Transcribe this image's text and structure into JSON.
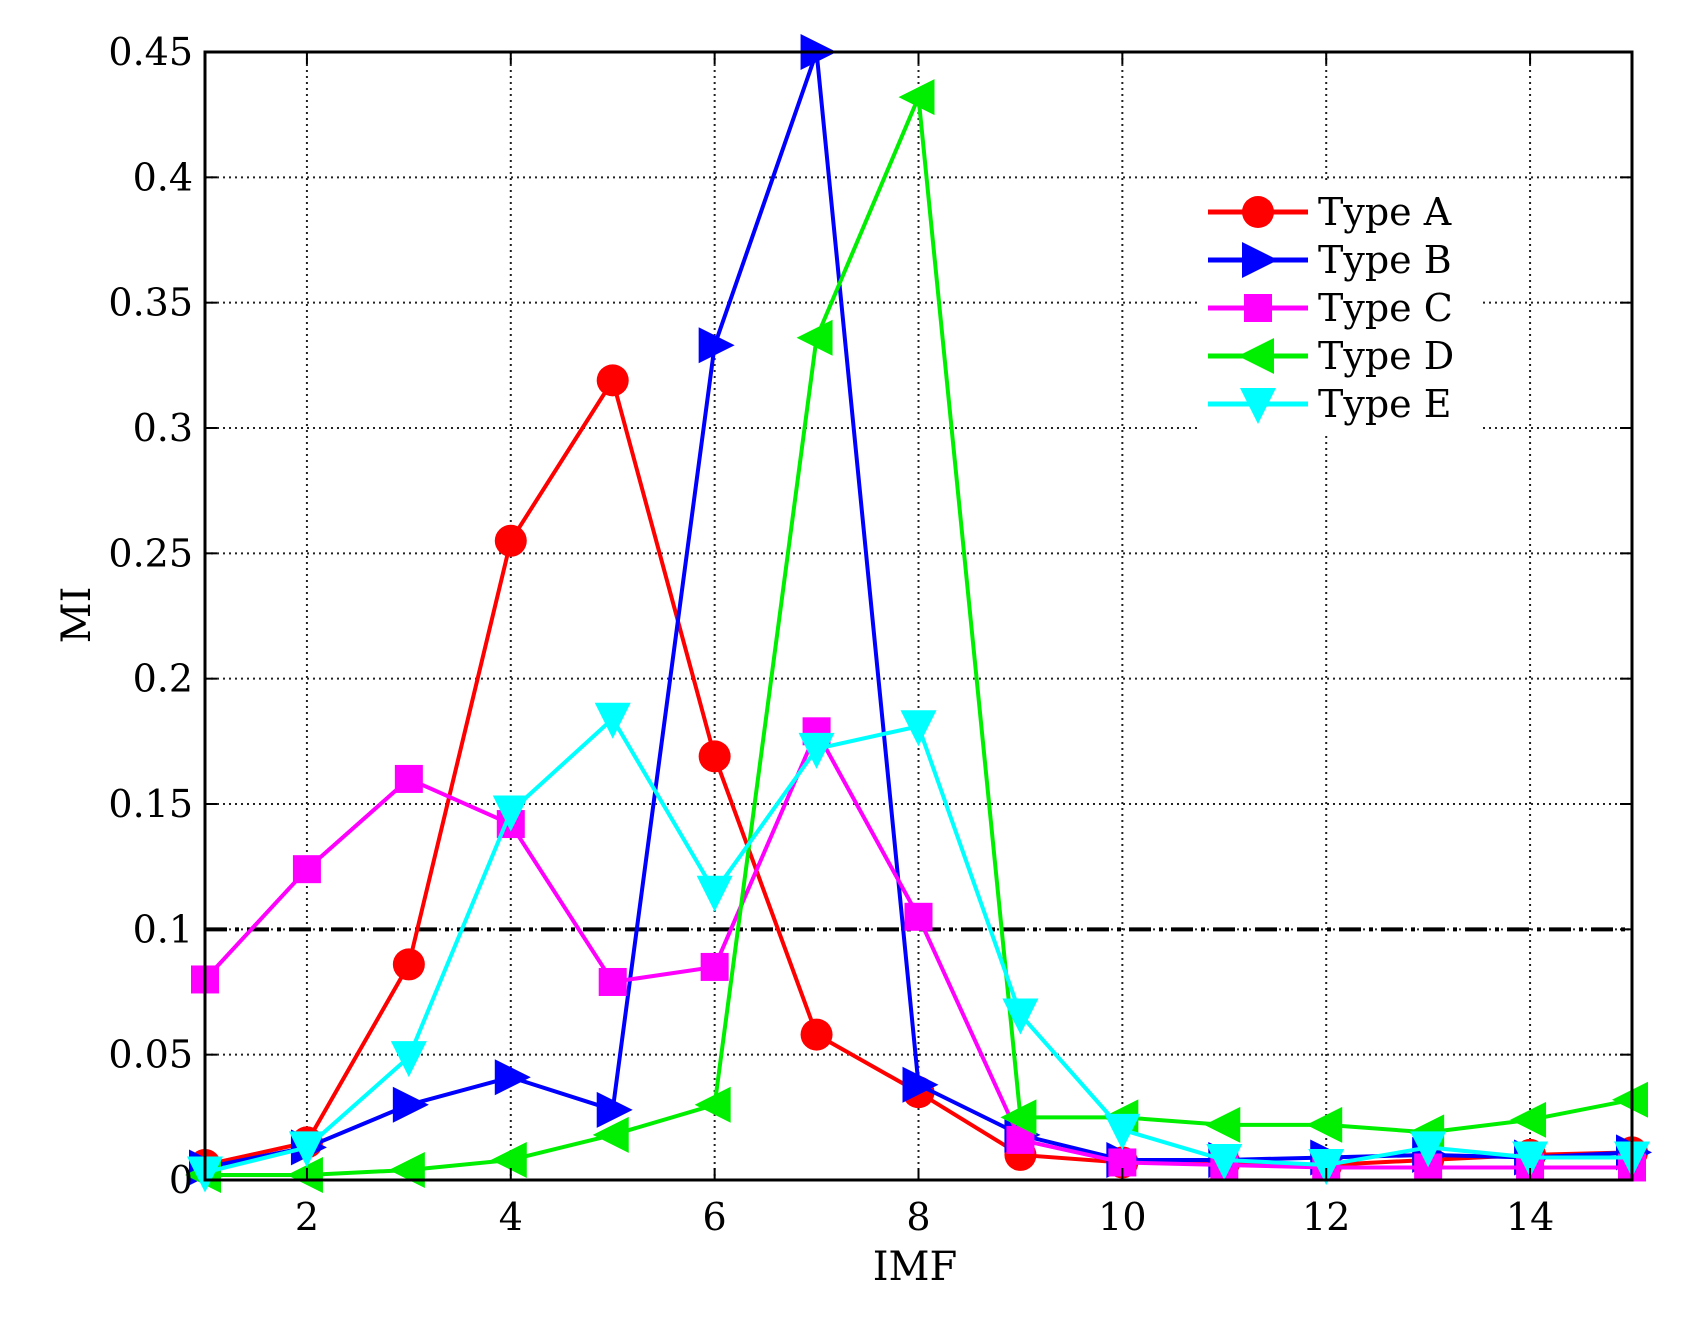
{
  "chart_data": {
    "type": "line",
    "xlabel": "IMF",
    "ylabel": "MI",
    "xlim": [
      1,
      15
    ],
    "ylim": [
      0,
      0.45
    ],
    "xticks": [
      2,
      4,
      6,
      8,
      10,
      12,
      14
    ],
    "yticks": [
      0,
      0.05,
      0.1,
      0.15,
      0.2,
      0.25,
      0.3,
      0.35,
      0.4,
      0.45
    ],
    "ytick_labels": [
      "0",
      "0.05",
      "0.1",
      "0.15",
      "0.2",
      "0.25",
      "0.3",
      "0.35",
      "0.4",
      "0.45"
    ],
    "grid": true,
    "legend_position": "top-right",
    "threshold": {
      "y": 0.1,
      "style": "dash-dot",
      "color": "#000000"
    },
    "x": [
      1,
      2,
      3,
      4,
      5,
      6,
      7,
      8,
      9,
      10,
      11,
      12,
      13,
      14,
      15
    ],
    "series": [
      {
        "name": "Type A",
        "color": "#ff0000",
        "marker": "circle",
        "values": [
          0.006,
          0.015,
          0.086,
          0.255,
          0.319,
          0.169,
          0.058,
          0.035,
          0.01,
          0.007,
          0.007,
          0.006,
          0.008,
          0.01,
          0.011
        ]
      },
      {
        "name": "Type B",
        "color": "#0000ff",
        "marker": "triangle-right",
        "values": [
          0.005,
          0.013,
          0.03,
          0.041,
          0.028,
          0.333,
          0.45,
          0.038,
          0.018,
          0.008,
          0.008,
          0.009,
          0.01,
          0.009,
          0.011
        ]
      },
      {
        "name": "Type C",
        "color": "#ff00ff",
        "marker": "square",
        "values": [
          0.08,
          0.124,
          0.16,
          0.142,
          0.079,
          0.085,
          0.179,
          0.105,
          0.016,
          0.007,
          0.006,
          0.005,
          0.005,
          0.005,
          0.005
        ]
      },
      {
        "name": "Type D",
        "color": "#00ee00",
        "marker": "triangle-left",
        "values": [
          0.002,
          0.002,
          0.004,
          0.008,
          0.018,
          0.03,
          0.336,
          0.432,
          0.025,
          0.025,
          0.022,
          0.022,
          0.019,
          0.024,
          0.032
        ]
      },
      {
        "name": "Type E",
        "color": "#00ffff",
        "marker": "triangle-down",
        "values": [
          0.003,
          0.013,
          0.049,
          0.147,
          0.184,
          0.115,
          0.172,
          0.181,
          0.066,
          0.02,
          0.008,
          0.006,
          0.013,
          0.009,
          0.009
        ]
      }
    ]
  }
}
